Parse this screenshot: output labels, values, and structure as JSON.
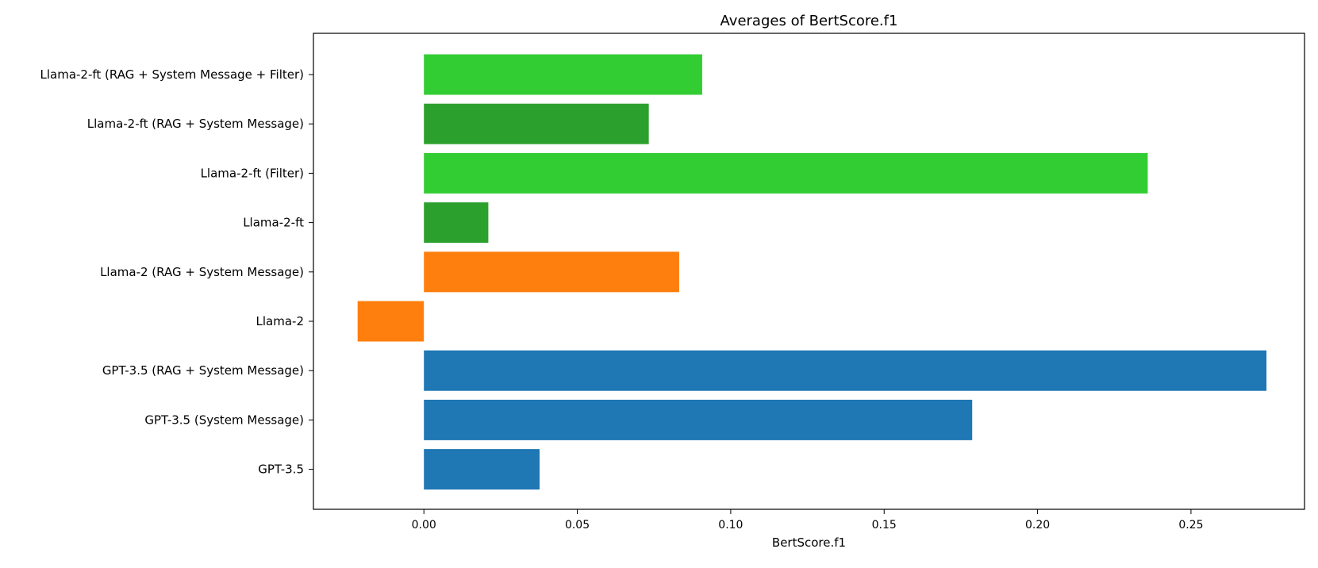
{
  "chart_data": {
    "type": "bar",
    "orientation": "horizontal",
    "title": "Averages of BertScore.f1",
    "xlabel": "BertScore.f1",
    "ylabel": "",
    "xlim": [
      -0.036,
      0.287
    ],
    "xticks": [
      0.0,
      0.05,
      0.1,
      0.15,
      0.2,
      0.25
    ],
    "xtick_labels": [
      "0.00",
      "0.05",
      "0.10",
      "0.15",
      "0.20",
      "0.25"
    ],
    "grid": false,
    "legend": "none",
    "categories": [
      "Llama-2-ft (RAG + System Message + Filter)",
      "Llama-2-ft (RAG + System Message)",
      "Llama-2-ft (Filter)",
      "Llama-2-ft",
      "Llama-2 (RAG + System Message)",
      "Llama-2",
      "GPT-3.5 (RAG + System Message)",
      "GPT-3.5 (System Message)",
      "GPT-3.5"
    ],
    "values": [
      0.0907,
      0.0733,
      0.2359,
      0.021,
      0.0832,
      -0.0216,
      0.2746,
      0.1787,
      0.0377
    ],
    "colors": [
      "#32cd32",
      "#2ca02c",
      "#32cd32",
      "#2ca02c",
      "#ff7f0e",
      "#ff7f0e",
      "#1f77b4",
      "#1f77b4",
      "#1f77b4"
    ]
  }
}
